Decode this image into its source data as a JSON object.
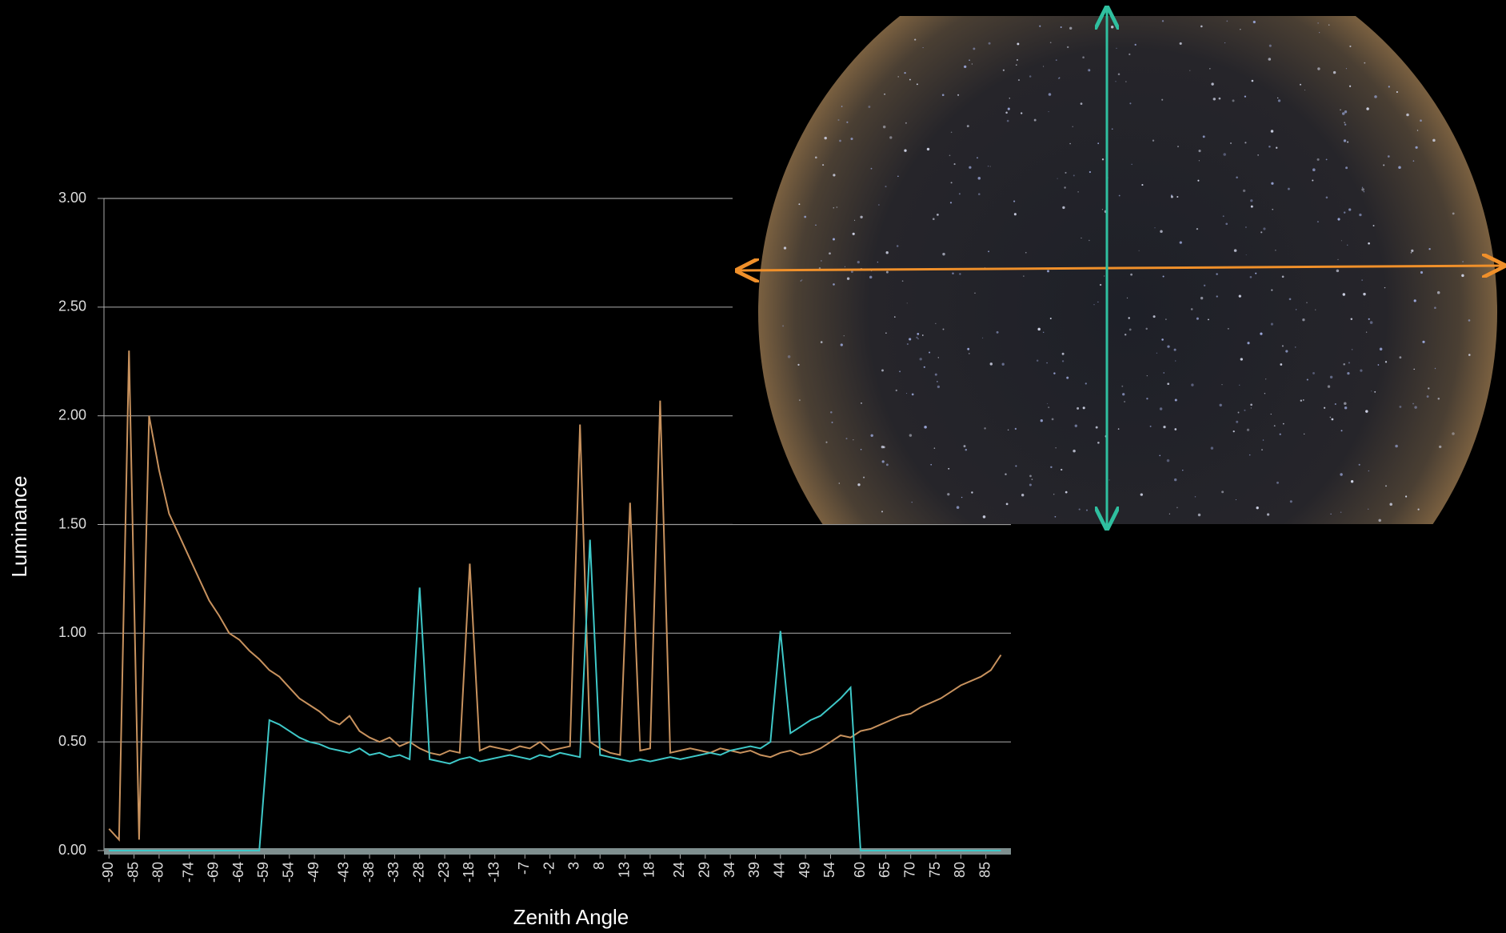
{
  "chart_data": {
    "type": "line",
    "x_label": "Zenith Angle",
    "y_label": "Luminance",
    "x": [
      -90,
      -88,
      -86,
      -84,
      -82,
      -80,
      -78,
      -76,
      -74,
      -72,
      -70,
      -68,
      -66,
      -64,
      -62,
      -60,
      -58,
      -56,
      -54,
      -52,
      -50,
      -48,
      -46,
      -44,
      -42,
      -40,
      -38,
      -36,
      -34,
      -32,
      -30,
      -28,
      -26,
      -24,
      -22,
      -20,
      -18,
      -16,
      -14,
      -12,
      -10,
      -8,
      -6,
      -4,
      -2,
      0,
      2,
      4,
      6,
      8,
      10,
      12,
      14,
      16,
      18,
      20,
      22,
      24,
      26,
      28,
      30,
      32,
      34,
      36,
      38,
      40,
      42,
      44,
      46,
      48,
      50,
      52,
      54,
      56,
      58,
      60,
      62,
      64,
      66,
      68,
      70,
      72,
      74,
      76,
      78,
      80,
      82,
      84,
      86,
      88
    ],
    "series": [
      {
        "color": "#c8925e",
        "values": [
          0.1,
          0.05,
          2.3,
          0.05,
          2.0,
          1.75,
          1.55,
          1.45,
          1.35,
          1.25,
          1.15,
          1.08,
          1.0,
          0.97,
          0.92,
          0.88,
          0.83,
          0.8,
          0.75,
          0.7,
          0.67,
          0.64,
          0.6,
          0.58,
          0.62,
          0.55,
          0.52,
          0.5,
          0.52,
          0.48,
          0.5,
          0.47,
          0.45,
          0.44,
          0.46,
          0.45,
          1.32,
          0.46,
          0.48,
          0.47,
          0.46,
          0.48,
          0.47,
          0.5,
          0.46,
          0.47,
          0.48,
          1.96,
          0.5,
          0.47,
          0.45,
          0.44,
          1.6,
          0.46,
          0.47,
          2.07,
          0.45,
          0.46,
          0.47,
          0.46,
          0.45,
          0.47,
          0.46,
          0.45,
          0.46,
          0.44,
          0.43,
          0.45,
          0.46,
          0.44,
          0.45,
          0.47,
          0.5,
          0.53,
          0.52,
          0.55,
          0.56,
          0.58,
          0.6,
          0.62,
          0.63,
          0.66,
          0.68,
          0.7,
          0.73,
          0.76,
          0.78,
          0.8,
          0.83,
          0.9
        ]
      },
      {
        "color": "#3ec8c8",
        "values": [
          0,
          0,
          0,
          0,
          0,
          0,
          0,
          0,
          0,
          0,
          0,
          0,
          0,
          0,
          0,
          0,
          0.6,
          0.58,
          0.55,
          0.52,
          0.5,
          0.49,
          0.47,
          0.46,
          0.45,
          0.47,
          0.44,
          0.45,
          0.43,
          0.44,
          0.42,
          1.21,
          0.42,
          0.41,
          0.4,
          0.42,
          0.43,
          0.41,
          0.42,
          0.43,
          0.44,
          0.43,
          0.42,
          0.44,
          0.43,
          0.45,
          0.44,
          0.43,
          1.43,
          0.44,
          0.43,
          0.42,
          0.41,
          0.42,
          0.41,
          0.42,
          0.43,
          0.42,
          0.43,
          0.44,
          0.45,
          0.44,
          0.46,
          0.47,
          0.48,
          0.47,
          0.5,
          1.01,
          0.54,
          0.57,
          0.6,
          0.62,
          0.66,
          0.7,
          0.75,
          0,
          0,
          0,
          0,
          0,
          0,
          0,
          0,
          0,
          0,
          0,
          0,
          0,
          0,
          0
        ]
      }
    ],
    "xlim": [
      -91,
      90
    ],
    "ylim": [
      0,
      3
    ],
    "xticks": [
      -90,
      -85,
      -80,
      -74,
      -69,
      -64,
      -59,
      -54,
      -49,
      -43,
      -38,
      -33,
      -28,
      -23,
      -18,
      -13,
      -7,
      -2,
      3,
      8,
      13,
      18,
      24,
      29,
      34,
      39,
      44,
      49,
      54,
      60,
      65,
      70,
      75,
      80,
      85
    ],
    "yticks": [
      {
        "value": 0,
        "label": "0.00"
      },
      {
        "value": 0.5,
        "label": "0.50"
      },
      {
        "value": 1,
        "label": "1.00"
      },
      {
        "value": 1.5,
        "label": "1.50"
      },
      {
        "value": 2,
        "label": "2.00"
      },
      {
        "value": 2.5,
        "label": "2.50"
      },
      {
        "value": 3,
        "label": "3.00"
      }
    ],
    "grid": true
  }
}
